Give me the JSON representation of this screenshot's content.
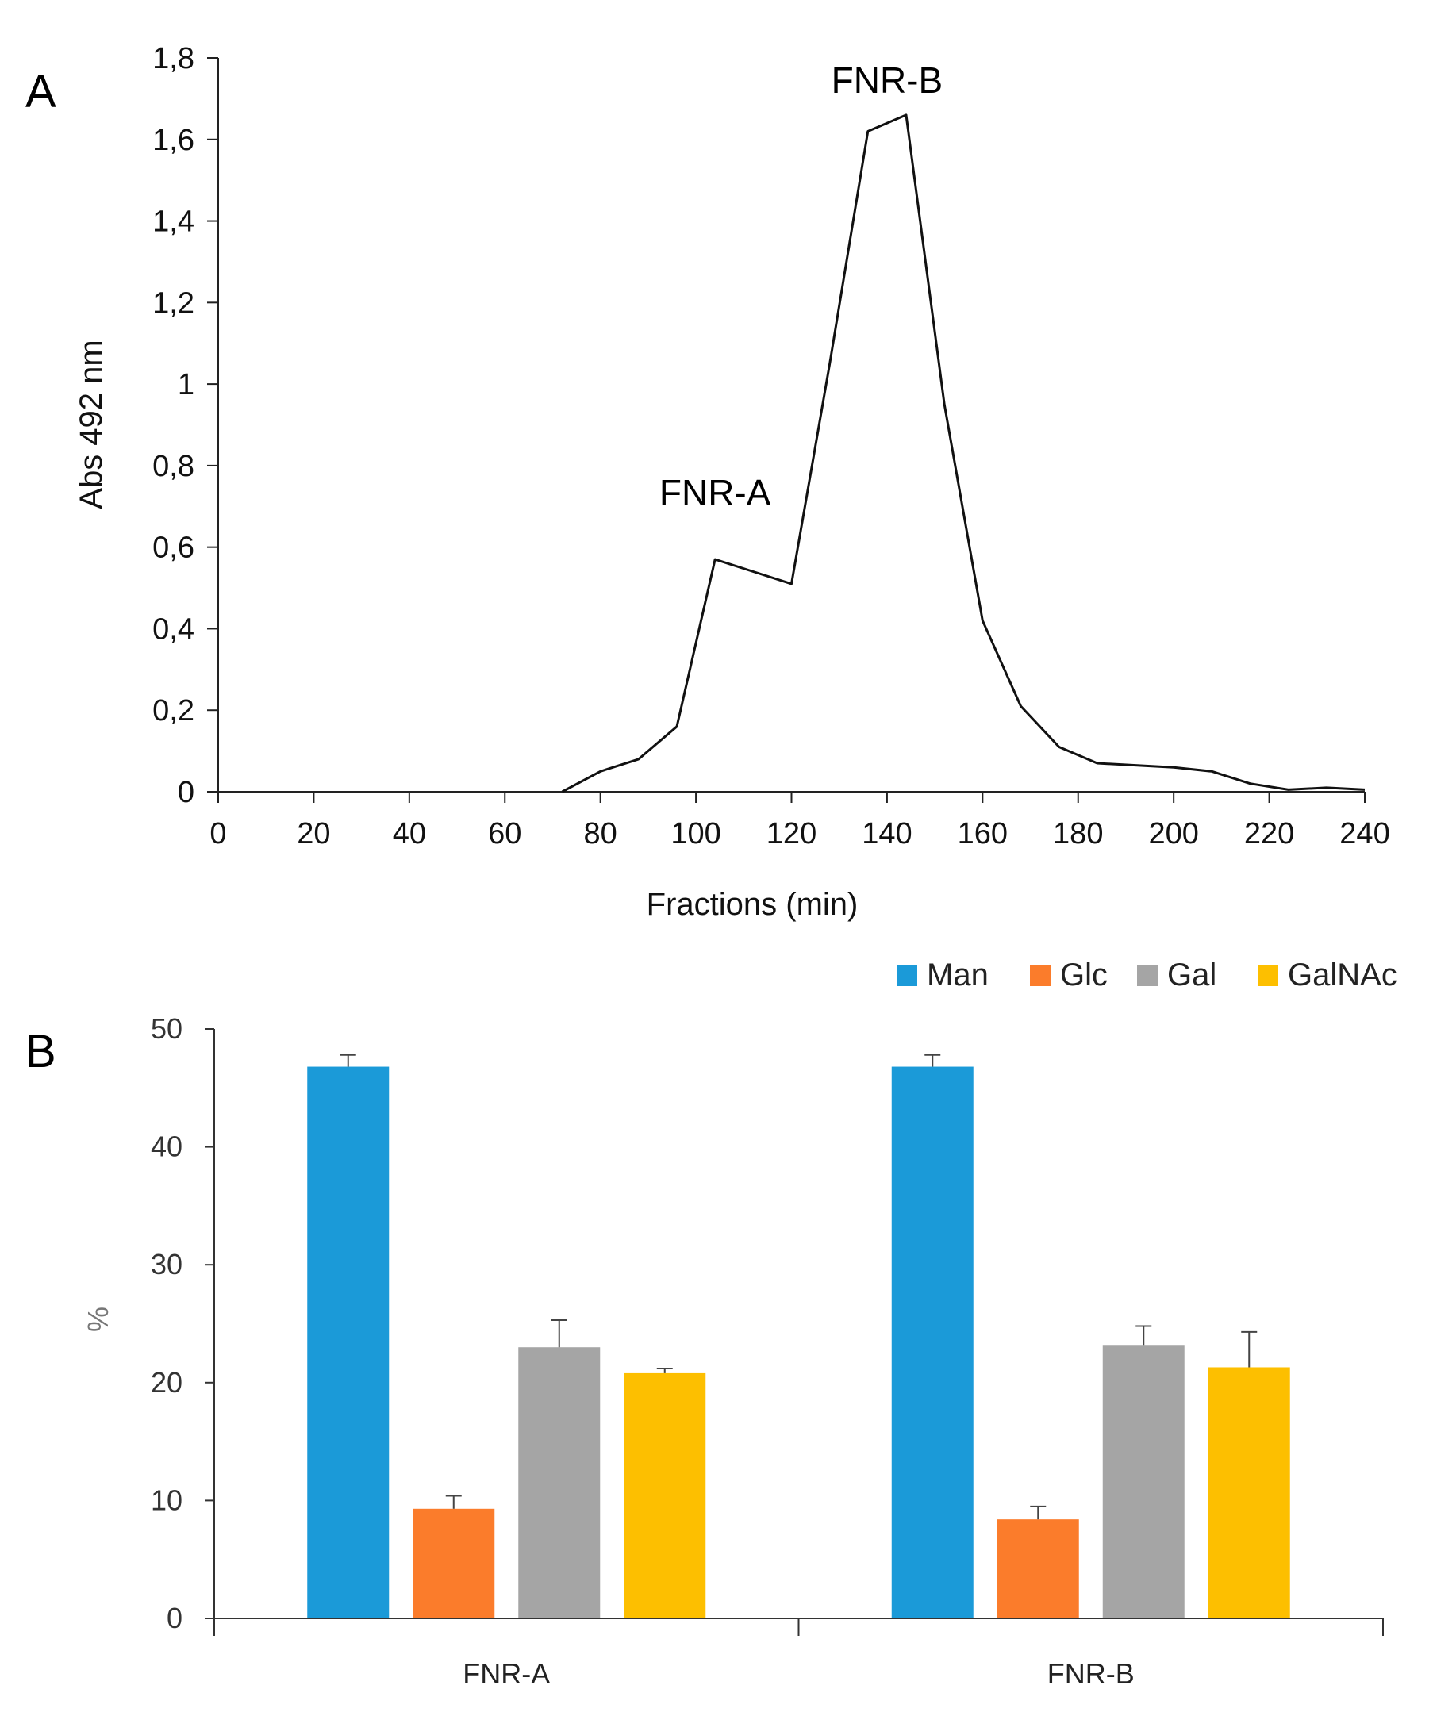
{
  "chart_data": [
    {
      "type": "line",
      "panel": "A",
      "title": "",
      "xlabel": "Fractions (min)",
      "ylabel": "Abs 492 nm",
      "xlim": [
        0,
        240
      ],
      "ylim": [
        0,
        1.8
      ],
      "xticks": [
        0,
        20,
        40,
        60,
        80,
        100,
        120,
        140,
        160,
        180,
        200,
        220,
        240
      ],
      "xtick_labels": [
        "0",
        "20",
        "40",
        "60",
        "80",
        "100",
        "120",
        "140",
        "160",
        "180",
        "200",
        "220",
        "240"
      ],
      "yticks": [
        0,
        0.2,
        0.4,
        0.6,
        0.8,
        1,
        1.2,
        1.4,
        1.6,
        1.8
      ],
      "ytick_labels": [
        "0",
        "0,2",
        "0,4",
        "0,6",
        "0,8",
        "1",
        "1,2",
        "1,4",
        "1,6",
        "1,8"
      ],
      "grid": false,
      "series": [
        {
          "name": "Abs 492 nm",
          "x": [
            72,
            80,
            88,
            96,
            104,
            112,
            120,
            128,
            136,
            144,
            152,
            160,
            168,
            176,
            184,
            192,
            200,
            208,
            216,
            224,
            232,
            240
          ],
          "y": [
            0,
            0.05,
            0.08,
            0.16,
            0.57,
            0.54,
            0.51,
            1.05,
            1.62,
            1.66,
            0.95,
            0.42,
            0.21,
            0.11,
            0.07,
            0.065,
            0.06,
            0.05,
            0.02,
            0.005,
            0.01,
            0.005
          ]
        }
      ],
      "annotations": [
        {
          "text": "FNR-A",
          "x": 104,
          "y": 0.57
        },
        {
          "text": "FNR-B",
          "x": 140,
          "y": 1.66
        }
      ]
    },
    {
      "type": "bar",
      "panel": "B",
      "title": "",
      "xlabel": "",
      "ylabel": "%",
      "ylim": [
        0,
        50
      ],
      "yticks": [
        0,
        10,
        20,
        30,
        40,
        50
      ],
      "ytick_labels": [
        "0",
        "10",
        "20",
        "30",
        "40",
        "50"
      ],
      "categories": [
        "FNR-A",
        "FNR-B"
      ],
      "legend_position": "top-right",
      "series": [
        {
          "name": "Man",
          "color": "#1b9ad8",
          "values": [
            46.8,
            46.8
          ],
          "errors": [
            1.0,
            1.0
          ]
        },
        {
          "name": "Glc",
          "color": "#fb7c2b",
          "values": [
            9.3,
            8.4
          ],
          "errors": [
            1.1,
            1.1
          ]
        },
        {
          "name": "Gal",
          "color": "#a5a5a5",
          "values": [
            23.0,
            23.2
          ],
          "errors": [
            2.3,
            1.6
          ]
        },
        {
          "name": "GalNAc",
          "color": "#fdbf00",
          "values": [
            20.8,
            21.3
          ],
          "errors": [
            0.4,
            3.0
          ]
        }
      ]
    }
  ]
}
